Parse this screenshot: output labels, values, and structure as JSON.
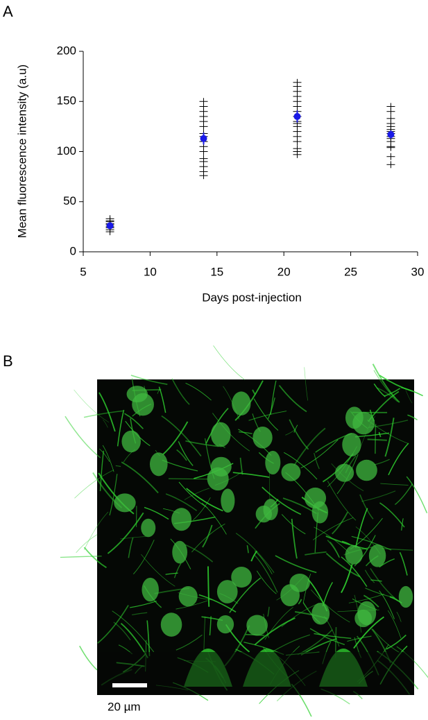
{
  "panel_labels": [
    "A",
    "B"
  ],
  "chart_data": {
    "type": "scatter",
    "xlabel": "Days post-injection",
    "ylabel": "Mean fluorescence intensity (a.u)",
    "xlim": [
      5,
      30
    ],
    "xticks": [
      5,
      10,
      15,
      20,
      25,
      30
    ],
    "ylim": [
      0,
      200
    ],
    "yticks": [
      0,
      50,
      100,
      150,
      200
    ],
    "series": [
      {
        "color": "#000000",
        "marker": "plus",
        "x": [
          7,
          7,
          7,
          7,
          7,
          7,
          7,
          7,
          7,
          14,
          14,
          14,
          14,
          14,
          14,
          14,
          14,
          14,
          14,
          14,
          14,
          14,
          14,
          14,
          14,
          21,
          21,
          21,
          21,
          21,
          21,
          21,
          21,
          21,
          21,
          21,
          21,
          21,
          21,
          21,
          21,
          21,
          28,
          28,
          28,
          28,
          28,
          28,
          28,
          28,
          28,
          28,
          28,
          28,
          28,
          28,
          28
        ],
        "y": [
          20,
          22,
          24,
          25,
          27,
          28,
          30,
          31,
          33,
          76,
          80,
          85,
          90,
          93,
          100,
          105,
          110,
          115,
          118,
          125,
          130,
          135,
          140,
          145,
          150,
          97,
          100,
          103,
          110,
          115,
          120,
          125,
          128,
          130,
          135,
          140,
          145,
          150,
          155,
          160,
          165,
          169,
          87,
          95,
          104,
          105,
          110,
          113,
          115,
          118,
          120,
          122,
          125,
          128,
          133,
          140,
          145
        ]
      },
      {
        "color": "#1a1ae6",
        "marker": "circle",
        "x": [
          7,
          14,
          21,
          28
        ],
        "y": [
          26,
          113,
          135,
          117
        ],
        "errors": [
          2,
          6,
          6,
          4
        ]
      }
    ]
  },
  "image": {
    "scale_bar_label": "20 µm"
  }
}
